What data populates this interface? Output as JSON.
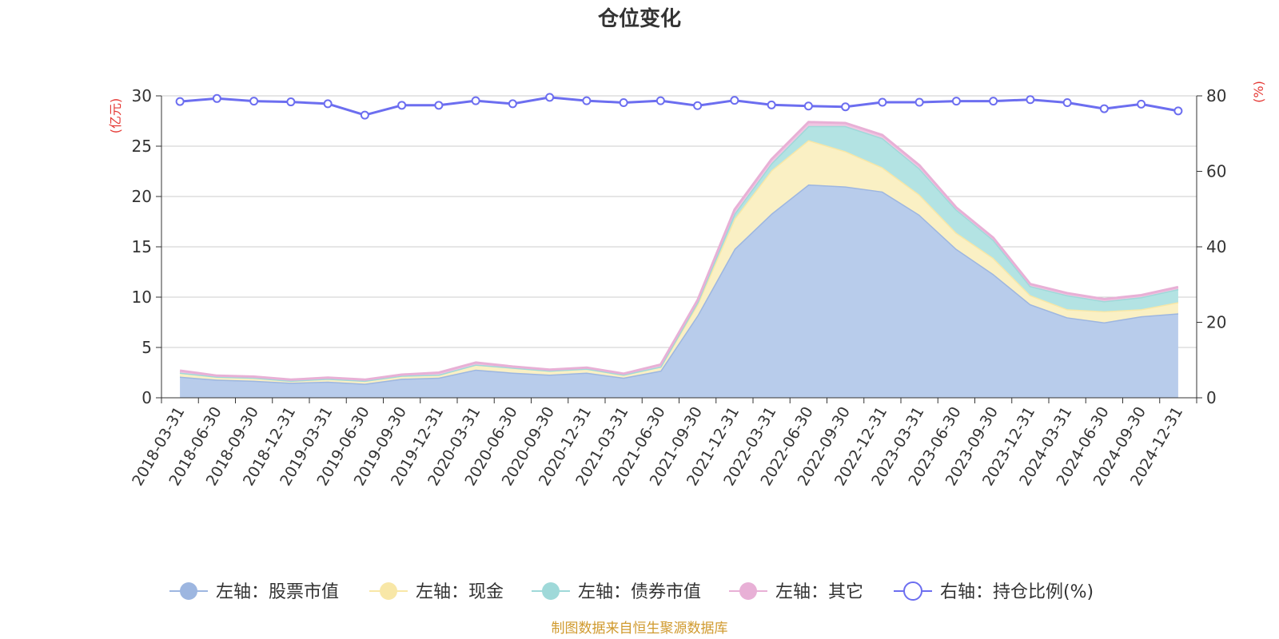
{
  "chart_data": {
    "type": "area",
    "title": "仓位变化",
    "left_axis_unit": "(亿元)",
    "right_axis_unit": "(%)",
    "x": [
      "2018-03-31",
      "2018-06-30",
      "2018-09-30",
      "2018-12-31",
      "2019-03-31",
      "2019-06-30",
      "2019-09-30",
      "2019-12-31",
      "2020-03-31",
      "2020-06-30",
      "2020-09-30",
      "2020-12-31",
      "2021-03-31",
      "2021-06-30",
      "2021-09-30",
      "2021-12-31",
      "2022-03-31",
      "2022-06-30",
      "2022-09-30",
      "2022-12-31",
      "2023-03-31",
      "2023-06-30",
      "2023-09-30",
      "2023-12-31",
      "2024-03-31",
      "2024-06-30",
      "2024-09-30",
      "2024-12-31"
    ],
    "ylim_left": [
      0,
      30
    ],
    "yticks_left": [
      0,
      5,
      10,
      15,
      20,
      25,
      30
    ],
    "ylim_right": [
      0,
      80
    ],
    "yticks_right": [
      0,
      20,
      40,
      60,
      80
    ],
    "grid": true,
    "legend_position": "bottom",
    "stacked_series": [
      {
        "name": "左轴：股票市值",
        "color": "#9db6e0",
        "fill": "#b8cceb",
        "values": [
          2.1,
          1.8,
          1.7,
          1.5,
          1.6,
          1.4,
          1.9,
          2.0,
          2.8,
          2.5,
          2.3,
          2.5,
          2.0,
          2.7,
          8.2,
          14.8,
          18.3,
          21.2,
          21.0,
          20.5,
          18.2,
          14.8,
          12.3,
          9.3,
          8.0,
          7.5,
          8.1,
          8.4
        ]
      },
      {
        "name": "左轴：现金",
        "color": "#f8e7a7",
        "fill": "#faf0c4",
        "values": [
          0.4,
          0.3,
          0.3,
          0.2,
          0.3,
          0.3,
          0.3,
          0.3,
          0.5,
          0.5,
          0.4,
          0.4,
          0.3,
          0.4,
          1.1,
          3.0,
          4.3,
          4.4,
          3.5,
          2.4,
          2.0,
          1.6,
          1.6,
          0.9,
          0.8,
          1.1,
          0.7,
          1.1
        ]
      },
      {
        "name": "左轴：债券市值",
        "color": "#9fd9d9",
        "fill": "#b3e3e3",
        "values": [
          0.0,
          0.0,
          0.0,
          0.0,
          0.0,
          0.0,
          0.0,
          0.0,
          0.0,
          0.0,
          0.0,
          0.0,
          0.0,
          0.0,
          0.2,
          0.5,
          0.7,
          1.4,
          2.5,
          2.9,
          2.6,
          2.3,
          1.8,
          0.9,
          1.4,
          1.0,
          1.2,
          1.3
        ]
      },
      {
        "name": "左轴：其它",
        "color": "#e8b0d6",
        "fill": "#f0c6e2",
        "values": [
          0.2,
          0.1,
          0.1,
          0.1,
          0.1,
          0.1,
          0.1,
          0.2,
          0.2,
          0.1,
          0.1,
          0.1,
          0.1,
          0.2,
          0.2,
          0.4,
          0.4,
          0.4,
          0.3,
          0.3,
          0.3,
          0.2,
          0.2,
          0.2,
          0.2,
          0.2,
          0.2,
          0.2
        ]
      }
    ],
    "line_series": {
      "name": "右轴：持仓比例(%)",
      "color": "#6c6ef0",
      "values": [
        78.5,
        79.3,
        78.6,
        78.4,
        77.9,
        74.9,
        77.5,
        77.5,
        78.7,
        77.9,
        79.6,
        78.7,
        78.2,
        78.7,
        77.4,
        78.8,
        77.6,
        77.3,
        77.1,
        78.3,
        78.3,
        78.6,
        78.6,
        79.0,
        78.2,
        76.6,
        77.8,
        76.0
      ]
    },
    "source_text": "制图数据来自恒生聚源数据库",
    "source_color": "#d09a2e",
    "axis_unit_color": "#e53935"
  }
}
